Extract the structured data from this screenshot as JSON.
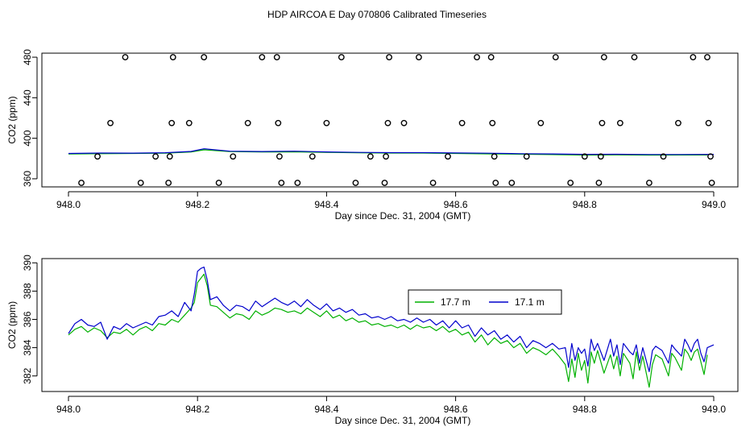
{
  "page_title": "HDP AIRCOA E  Day 070806  Calibrated Timeseries",
  "colors": {
    "green": "#00b000",
    "blue": "#0000cc",
    "axis": "#000000"
  },
  "chart_data": [
    {
      "type": "scatter",
      "id": "top",
      "xlabel": "Day since Dec. 31, 2004 (GMT)",
      "ylabel": "CO2 (ppm)",
      "xlim": [
        948.0,
        949.0
      ],
      "ylim": [
        352,
        484
      ],
      "xticks": [
        "948.0",
        "948.2",
        "948.4",
        "948.6",
        "948.8",
        "949.0"
      ],
      "yticks": [
        "360",
        "400",
        "440",
        "480"
      ],
      "xtick_values": [
        948.0,
        948.2,
        948.4,
        948.6,
        948.8,
        949.0
      ],
      "ytick_values": [
        360,
        400,
        440,
        480
      ],
      "markers": [
        {
          "x": 948.02,
          "y": 356
        },
        {
          "x": 948.045,
          "y": 382
        },
        {
          "x": 948.065,
          "y": 415
        },
        {
          "x": 948.088,
          "y": 480
        },
        {
          "x": 948.112,
          "y": 356
        },
        {
          "x": 948.135,
          "y": 382
        },
        {
          "x": 948.155,
          "y": 356
        },
        {
          "x": 948.157,
          "y": 382
        },
        {
          "x": 948.16,
          "y": 415
        },
        {
          "x": 948.162,
          "y": 480
        },
        {
          "x": 948.187,
          "y": 415
        },
        {
          "x": 948.21,
          "y": 480
        },
        {
          "x": 948.233,
          "y": 356
        },
        {
          "x": 948.255,
          "y": 382
        },
        {
          "x": 948.278,
          "y": 415
        },
        {
          "x": 948.3,
          "y": 480
        },
        {
          "x": 948.323,
          "y": 480
        },
        {
          "x": 948.325,
          "y": 415
        },
        {
          "x": 948.327,
          "y": 382
        },
        {
          "x": 948.33,
          "y": 356
        },
        {
          "x": 948.355,
          "y": 356
        },
        {
          "x": 948.378,
          "y": 382
        },
        {
          "x": 948.4,
          "y": 415
        },
        {
          "x": 948.423,
          "y": 480
        },
        {
          "x": 948.445,
          "y": 356
        },
        {
          "x": 948.468,
          "y": 382
        },
        {
          "x": 948.49,
          "y": 356
        },
        {
          "x": 948.492,
          "y": 382
        },
        {
          "x": 948.495,
          "y": 415
        },
        {
          "x": 948.497,
          "y": 480
        },
        {
          "x": 948.52,
          "y": 415
        },
        {
          "x": 948.543,
          "y": 480
        },
        {
          "x": 948.565,
          "y": 356
        },
        {
          "x": 948.588,
          "y": 382
        },
        {
          "x": 948.61,
          "y": 415
        },
        {
          "x": 948.633,
          "y": 480
        },
        {
          "x": 948.655,
          "y": 480
        },
        {
          "x": 948.657,
          "y": 415
        },
        {
          "x": 948.66,
          "y": 382
        },
        {
          "x": 948.662,
          "y": 356
        },
        {
          "x": 948.687,
          "y": 356
        },
        {
          "x": 948.71,
          "y": 382
        },
        {
          "x": 948.732,
          "y": 415
        },
        {
          "x": 948.755,
          "y": 480
        },
        {
          "x": 948.778,
          "y": 356
        },
        {
          "x": 948.8,
          "y": 382
        },
        {
          "x": 948.822,
          "y": 356
        },
        {
          "x": 948.825,
          "y": 382
        },
        {
          "x": 948.827,
          "y": 415
        },
        {
          "x": 948.83,
          "y": 480
        },
        {
          "x": 948.855,
          "y": 415
        },
        {
          "x": 948.877,
          "y": 480
        },
        {
          "x": 948.9,
          "y": 356
        },
        {
          "x": 948.922,
          "y": 382
        },
        {
          "x": 948.945,
          "y": 415
        },
        {
          "x": 948.968,
          "y": 480
        },
        {
          "x": 948.99,
          "y": 480
        },
        {
          "x": 948.992,
          "y": 415
        },
        {
          "x": 948.995,
          "y": 382
        },
        {
          "x": 948.997,
          "y": 356
        }
      ],
      "series": [
        {
          "color": "#00b000",
          "x": [
            948.0,
            948.05,
            948.1,
            948.15,
            948.19,
            948.21,
            948.25,
            948.3,
            948.35,
            948.4,
            948.45,
            948.5,
            948.55,
            948.6,
            948.65,
            948.7,
            948.75,
            948.8,
            948.85,
            948.9,
            948.95,
            948.99
          ],
          "y": [
            384.5,
            384.8,
            385.0,
            385.2,
            386.5,
            388.6,
            386.8,
            386.4,
            386.6,
            386.0,
            385.6,
            385.4,
            385.4,
            385.0,
            384.6,
            384.3,
            383.9,
            383.4,
            383.6,
            383.4,
            383.5,
            383.5
          ]
        },
        {
          "color": "#0000cc",
          "x": [
            948.0,
            948.05,
            948.1,
            948.15,
            948.19,
            948.21,
            948.25,
            948.3,
            948.35,
            948.4,
            948.45,
            948.5,
            948.55,
            948.6,
            948.65,
            948.7,
            948.75,
            948.8,
            948.85,
            948.9,
            948.95,
            949.0
          ],
          "y": [
            385.0,
            385.4,
            385.3,
            385.7,
            387.0,
            389.6,
            387.2,
            386.9,
            387.2,
            386.5,
            386.0,
            385.8,
            385.8,
            385.5,
            385.2,
            384.8,
            384.5,
            384.1,
            384.2,
            384.0,
            384.0,
            384.1
          ]
        }
      ]
    },
    {
      "type": "line",
      "id": "bottom",
      "xlabel": "Day since Dec. 31, 2004 (GMT)",
      "ylabel": "CO2 (ppm)",
      "xlim": [
        948.0,
        949.0
      ],
      "ylim": [
        380.9,
        390.3
      ],
      "xticks": [
        "948.0",
        "948.2",
        "948.4",
        "948.6",
        "948.8",
        "949.0"
      ],
      "yticks": [
        "382",
        "384",
        "386",
        "388",
        "390"
      ],
      "xtick_values": [
        948.0,
        948.2,
        948.4,
        948.6,
        948.8,
        949.0
      ],
      "ytick_values": [
        382,
        384,
        386,
        388,
        390
      ],
      "legend": {
        "position": "top-right",
        "entries": [
          "17.7 m",
          "17.1 m"
        ]
      },
      "series": [
        {
          "name": "17.7 m",
          "color": "#00b000",
          "x": [
            948.0,
            948.01,
            948.02,
            948.03,
            948.04,
            948.05,
            948.06,
            948.07,
            948.08,
            948.09,
            948.1,
            948.11,
            948.12,
            948.13,
            948.14,
            948.15,
            948.16,
            948.17,
            948.18,
            948.19,
            948.195,
            948.2,
            948.205,
            948.21,
            948.215,
            948.22,
            948.23,
            948.24,
            948.25,
            948.26,
            948.27,
            948.28,
            948.29,
            948.3,
            948.31,
            948.32,
            948.33,
            948.34,
            948.35,
            948.36,
            948.37,
            948.38,
            948.39,
            948.4,
            948.41,
            948.42,
            948.43,
            948.44,
            948.45,
            948.46,
            948.47,
            948.48,
            948.49,
            948.5,
            948.51,
            948.52,
            948.53,
            948.54,
            948.55,
            948.56,
            948.57,
            948.58,
            948.59,
            948.6,
            948.61,
            948.62,
            948.63,
            948.64,
            948.65,
            948.66,
            948.67,
            948.68,
            948.69,
            948.7,
            948.71,
            948.72,
            948.73,
            948.74,
            948.75,
            948.76,
            948.77,
            948.775,
            948.78,
            948.785,
            948.79,
            948.795,
            948.8,
            948.805,
            948.81,
            948.815,
            948.82,
            948.83,
            948.84,
            948.845,
            948.85,
            948.855,
            948.86,
            948.87,
            948.875,
            948.88,
            948.885,
            948.89,
            948.9,
            948.905,
            948.91,
            948.92,
            948.93,
            948.935,
            948.94,
            948.95,
            948.955,
            948.96,
            948.965,
            948.97,
            948.975,
            948.98,
            948.985,
            948.99
          ],
          "y": [
            384.9,
            385.3,
            385.5,
            385.1,
            385.4,
            385.2,
            384.7,
            385.1,
            385.0,
            385.3,
            384.9,
            385.3,
            385.5,
            385.2,
            385.7,
            385.6,
            386.0,
            385.8,
            386.3,
            386.8,
            387.2,
            388.6,
            388.9,
            389.2,
            388.4,
            387.0,
            386.9,
            386.5,
            386.1,
            386.4,
            386.3,
            386.0,
            386.6,
            386.3,
            386.5,
            386.8,
            386.7,
            386.5,
            386.6,
            386.4,
            386.8,
            386.5,
            386.2,
            386.6,
            386.1,
            386.3,
            385.9,
            386.1,
            385.8,
            385.9,
            385.6,
            385.7,
            385.5,
            385.6,
            385.4,
            385.6,
            385.3,
            385.6,
            385.4,
            385.5,
            385.2,
            385.5,
            385.1,
            385.3,
            384.9,
            385.1,
            384.4,
            384.9,
            384.2,
            384.7,
            384.3,
            384.5,
            384.0,
            384.3,
            383.6,
            384.0,
            383.8,
            383.5,
            383.9,
            383.4,
            382.8,
            381.6,
            383.2,
            381.9,
            383.6,
            382.4,
            383.1,
            381.5,
            383.7,
            382.9,
            383.8,
            382.2,
            383.5,
            382.5,
            383.4,
            382.0,
            383.6,
            382.9,
            381.8,
            383.7,
            382.4,
            383.4,
            381.2,
            382.8,
            383.5,
            383.2,
            382.0,
            383.6,
            383.3,
            382.4,
            383.9,
            383.6,
            383.1,
            383.7,
            383.9,
            383.0,
            382.1,
            383.5
          ]
        },
        {
          "name": "17.1 m",
          "color": "#0000cc",
          "x": [
            948.0,
            948.01,
            948.02,
            948.03,
            948.04,
            948.05,
            948.06,
            948.07,
            948.08,
            948.09,
            948.1,
            948.11,
            948.12,
            948.13,
            948.14,
            948.15,
            948.16,
            948.17,
            948.18,
            948.19,
            948.195,
            948.2,
            948.205,
            948.21,
            948.215,
            948.22,
            948.23,
            948.24,
            948.25,
            948.26,
            948.27,
            948.28,
            948.29,
            948.3,
            948.31,
            948.32,
            948.33,
            948.34,
            948.35,
            948.36,
            948.37,
            948.38,
            948.39,
            948.4,
            948.41,
            948.42,
            948.43,
            948.44,
            948.45,
            948.46,
            948.47,
            948.48,
            948.49,
            948.5,
            948.51,
            948.52,
            948.53,
            948.54,
            948.55,
            948.56,
            948.57,
            948.58,
            948.59,
            948.6,
            948.61,
            948.62,
            948.63,
            948.64,
            948.65,
            948.66,
            948.67,
            948.68,
            948.69,
            948.7,
            948.71,
            948.72,
            948.73,
            948.74,
            948.75,
            948.76,
            948.77,
            948.775,
            948.78,
            948.785,
            948.79,
            948.795,
            948.8,
            948.805,
            948.81,
            948.815,
            948.82,
            948.83,
            948.84,
            948.845,
            948.85,
            948.855,
            948.86,
            948.87,
            948.875,
            948.88,
            948.885,
            948.89,
            948.9,
            948.905,
            948.91,
            948.92,
            948.93,
            948.935,
            948.94,
            948.95,
            948.955,
            948.96,
            948.965,
            948.97,
            948.975,
            948.98,
            948.985,
            948.99,
            949.0
          ],
          "y": [
            385.0,
            385.7,
            386.0,
            385.6,
            385.5,
            385.8,
            384.6,
            385.5,
            385.3,
            385.7,
            385.4,
            385.6,
            385.8,
            385.6,
            386.2,
            386.3,
            386.6,
            386.2,
            387.2,
            386.6,
            387.8,
            389.4,
            389.6,
            389.7,
            388.8,
            387.4,
            387.6,
            387.0,
            386.6,
            387.0,
            386.9,
            386.6,
            387.3,
            386.9,
            387.2,
            387.5,
            387.2,
            387.0,
            387.3,
            386.9,
            387.4,
            387.0,
            386.7,
            387.1,
            386.6,
            386.8,
            386.5,
            386.7,
            386.3,
            386.4,
            386.1,
            386.2,
            386.0,
            386.2,
            385.9,
            386.0,
            385.8,
            386.1,
            385.8,
            386.0,
            385.6,
            385.9,
            385.4,
            385.9,
            385.4,
            385.6,
            384.8,
            385.4,
            384.9,
            385.2,
            384.6,
            384.9,
            384.4,
            384.8,
            384.0,
            384.5,
            384.3,
            384.0,
            384.3,
            383.9,
            384.0,
            382.6,
            384.3,
            383.1,
            384.0,
            383.6,
            383.9,
            382.7,
            384.6,
            383.8,
            384.3,
            383.1,
            384.6,
            383.4,
            384.2,
            382.8,
            384.3,
            383.7,
            383.5,
            384.2,
            382.9,
            384.0,
            382.3,
            383.8,
            384.1,
            383.8,
            382.9,
            384.2,
            383.9,
            383.4,
            384.6,
            384.2,
            383.7,
            384.3,
            384.6,
            383.6,
            383.0,
            384.0,
            384.2
          ]
        }
      ]
    }
  ]
}
